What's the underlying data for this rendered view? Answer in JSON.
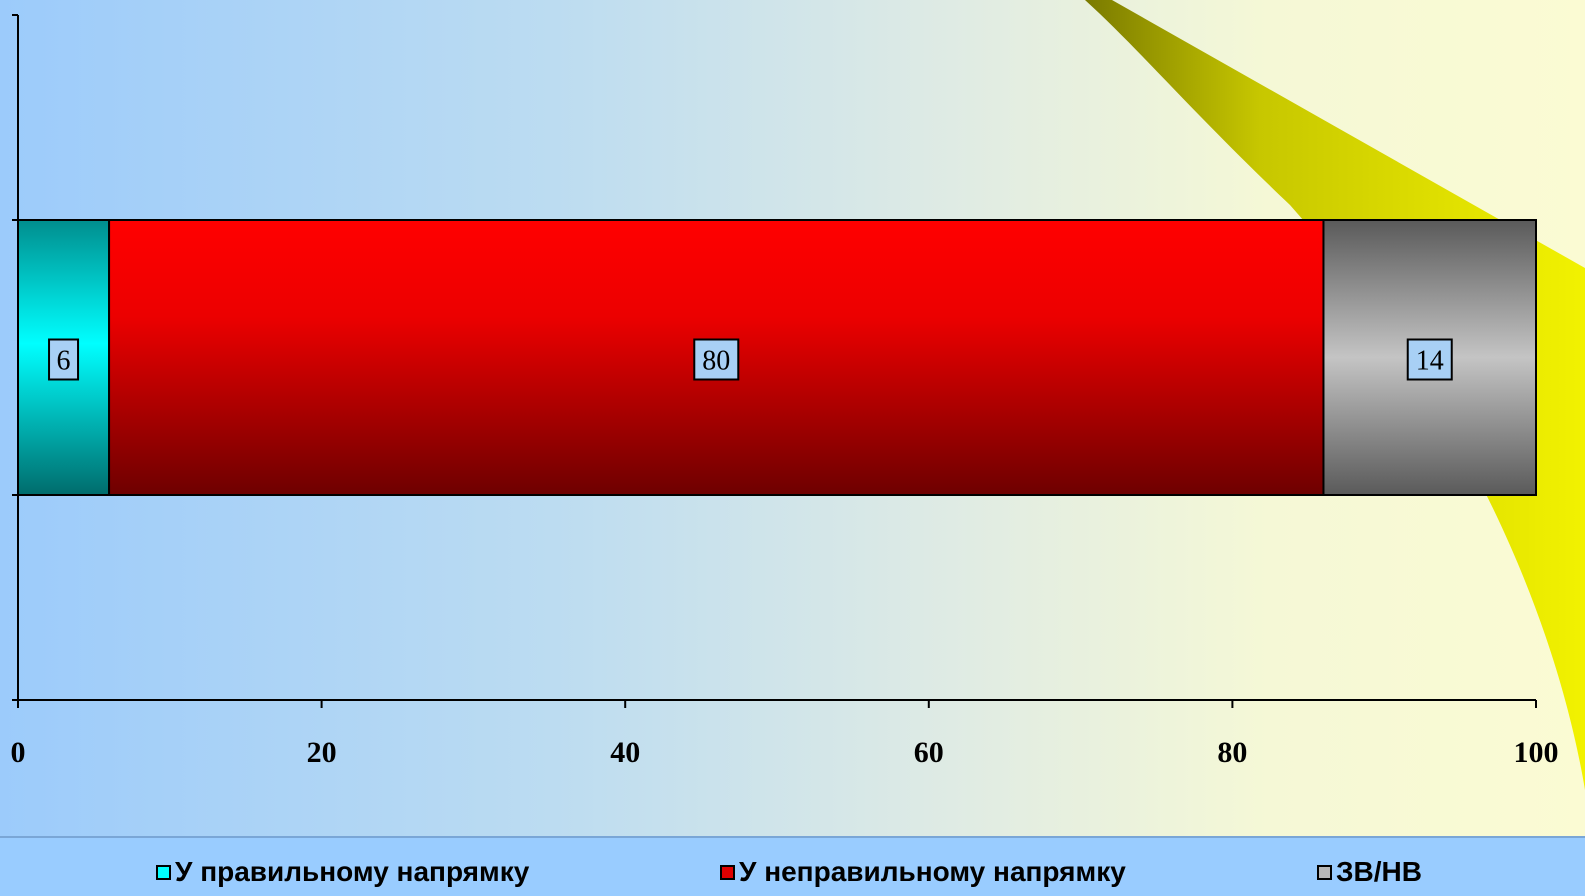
{
  "chart_data": {
    "type": "bar",
    "orientation": "horizontal",
    "stacked": true,
    "categories": [
      ""
    ],
    "series": [
      {
        "name": "У правильному напрямку",
        "values": [
          6
        ],
        "label": "6",
        "color": "#00e5e5"
      },
      {
        "name": "У неправильному напрямку",
        "values": [
          80
        ],
        "label": "80",
        "color": "#e00000"
      },
      {
        "name": "ЗВ/НВ",
        "values": [
          14
        ],
        "label": "14",
        "color": "#a6a6a6"
      }
    ],
    "xlim": [
      0,
      100
    ],
    "xticks": [
      "0",
      "20",
      "40",
      "60",
      "80",
      "100"
    ],
    "grid": false,
    "legend_position": "bottom"
  }
}
